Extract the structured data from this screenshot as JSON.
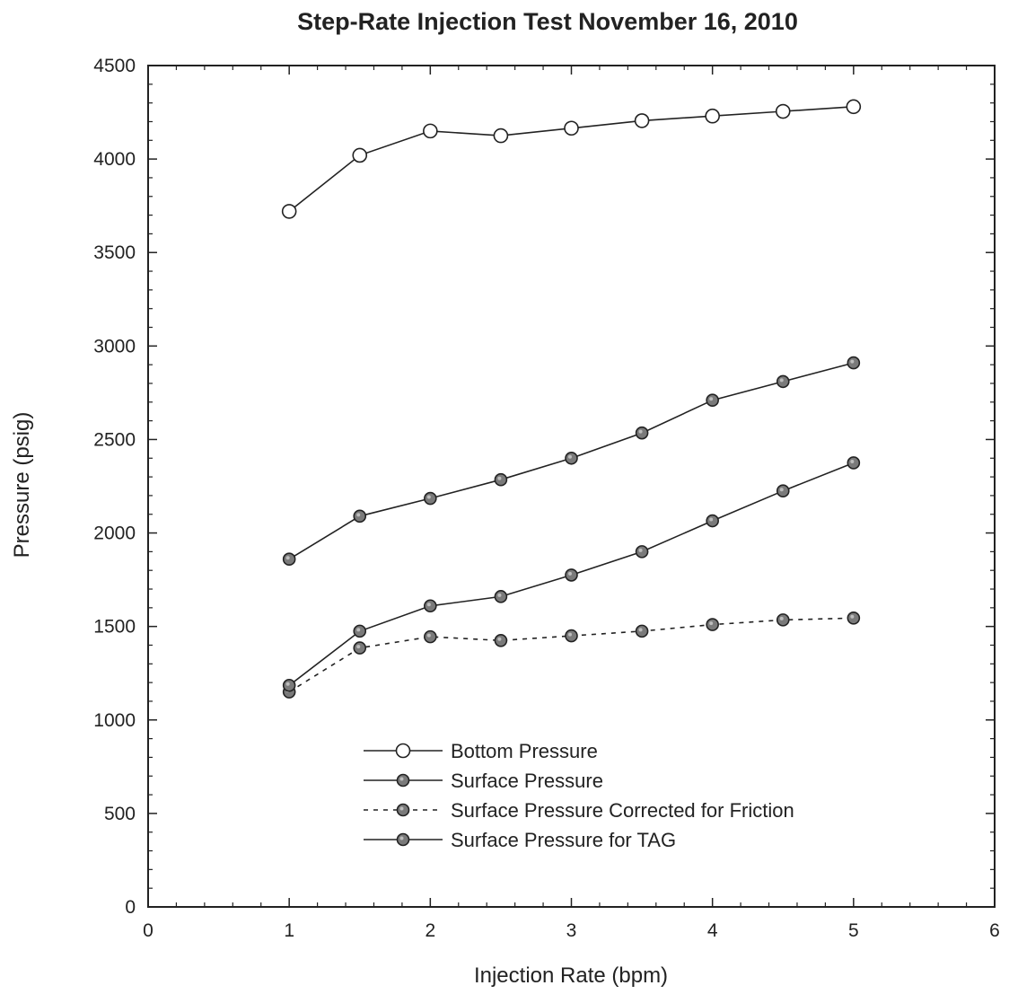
{
  "chart_data": {
    "type": "line",
    "title": "Step-Rate Injection Test November 16, 2010",
    "xlabel": "Injection Rate (bpm)",
    "ylabel": "Pressure (psig)",
    "xlim": [
      0,
      6
    ],
    "ylim": [
      0,
      4500
    ],
    "x_ticks": [
      0,
      1,
      2,
      3,
      4,
      5,
      6
    ],
    "y_ticks": [
      0,
      500,
      1000,
      1500,
      2000,
      2500,
      3000,
      3500,
      4000,
      4500
    ],
    "grid": false,
    "legend_position": "bottom-center",
    "x": [
      1,
      1.5,
      2,
      2.5,
      3,
      3.5,
      4,
      4.5,
      5
    ],
    "series": [
      {
        "name": "Bottom Pressure",
        "values": [
          3720,
          4020,
          4150,
          4125,
          4165,
          4205,
          4230,
          4255,
          4280
        ],
        "marker": "open-circle",
        "line_style": "solid",
        "color": "#222222"
      },
      {
        "name": "Surface Pressure",
        "values": [
          1860,
          2090,
          2185,
          2285,
          2400,
          2535,
          2710,
          2810,
          2910
        ],
        "marker": "filled-circle",
        "line_style": "solid",
        "color": "#222222"
      },
      {
        "name": "Surface Pressure Corrected for Friction",
        "values": [
          1150,
          1385,
          1445,
          1425,
          1450,
          1475,
          1510,
          1535,
          1545
        ],
        "marker": "filled-circle",
        "line_style": "dashed",
        "color": "#222222"
      },
      {
        "name": "Surface Pressure for TAG",
        "values": [
          1185,
          1475,
          1610,
          1660,
          1775,
          1900,
          2065,
          2225,
          2375
        ],
        "marker": "filled-circle",
        "line_style": "solid",
        "color": "#222222"
      }
    ]
  }
}
